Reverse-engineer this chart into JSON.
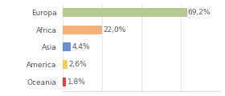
{
  "categories": [
    "Europa",
    "Africa",
    "Asia",
    "America",
    "Oceania"
  ],
  "values": [
    69.2,
    22.0,
    4.4,
    2.6,
    1.8
  ],
  "labels": [
    "69,2%",
    "22,0%",
    "4,4%",
    "2,6%",
    "1,8%"
  ],
  "bar_colors": [
    "#b5c98e",
    "#f0b47a",
    "#6e8fcb",
    "#f0d060",
    "#e04040"
  ],
  "background_color": "#ffffff",
  "label_fontsize": 6.5,
  "tick_fontsize": 6.5,
  "xlim": [
    0,
    88
  ],
  "bar_height": 0.5,
  "grid_color": "#dddddd"
}
